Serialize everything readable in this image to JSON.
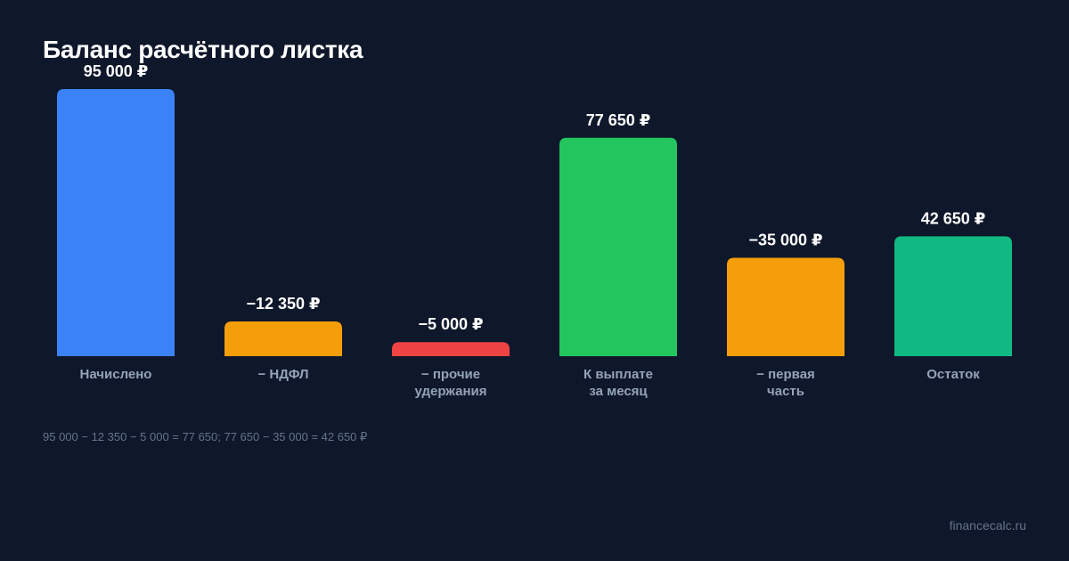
{
  "title": "Баланс расчётного листка",
  "formula": "95 000 − 12 350 − 5 000 = 77 650; 77 650 − 35 000 = 42 650 ₽",
  "source": "financecalc.ru",
  "chart_data": {
    "type": "bar",
    "title": "Баланс расчётного листка",
    "categories": [
      [
        "Начислено"
      ],
      [
        "− НДФЛ"
      ],
      [
        "− прочие",
        "удержания"
      ],
      [
        "К выплате",
        "за месяц"
      ],
      [
        "− первая",
        "часть"
      ],
      [
        "Остаток"
      ]
    ],
    "values": [
      95000,
      -12350,
      -5000,
      77650,
      -35000,
      42650
    ],
    "value_labels": [
      "95 000 ₽",
      "−12 350 ₽",
      "−5 000 ₽",
      "77 650 ₽",
      "−35 000 ₽",
      "42 650 ₽"
    ],
    "colors": [
      "#3b82f6",
      "#f59e0b",
      "#ef4444",
      "#22c55e",
      "#f59e0b",
      "#10b981"
    ],
    "ylim": [
      0,
      95000
    ],
    "grid": false,
    "legend": "none"
  }
}
